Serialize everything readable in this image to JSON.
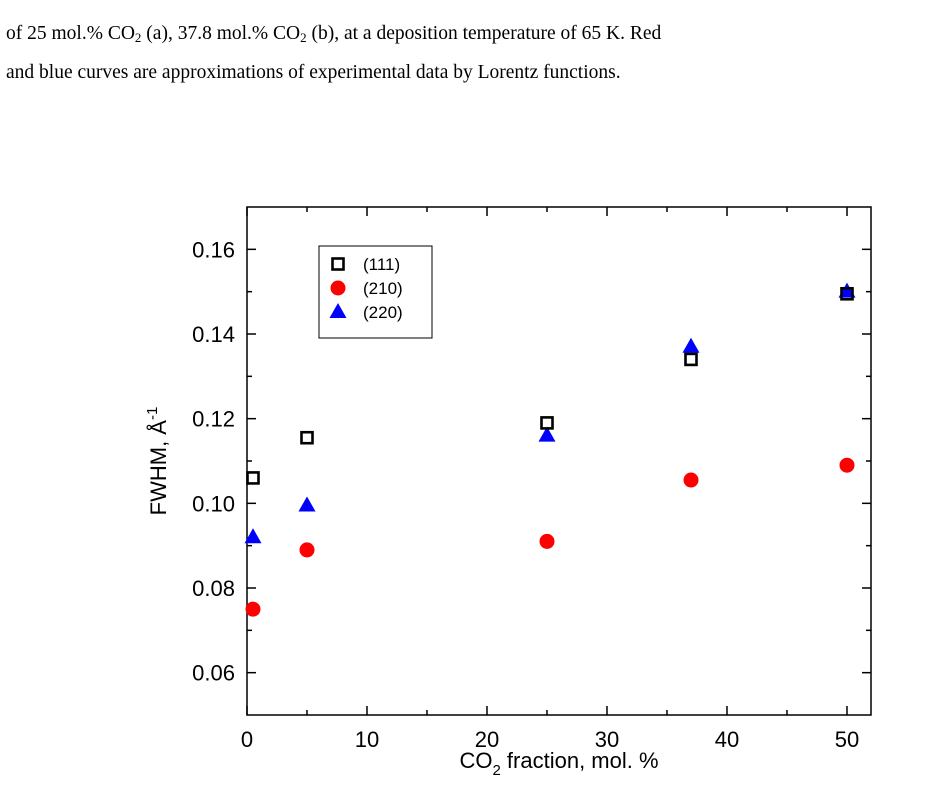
{
  "caption": {
    "line1_prefix": "of 25 mol.% CO",
    "line1_mid": " (a), 37.8 mol.% CO",
    "line1_suffix": " (b), at a deposition temperature of 65 K. Red",
    "sub": "2",
    "line2": "and blue curves are approximations of experimental data by Lorentz functions."
  },
  "chart_data": {
    "type": "scatter",
    "xlabel_main": "CO",
    "xlabel_sub": "2",
    "xlabel_rest": " fraction, mol. %",
    "ylabel_main": "FWHM, Å",
    "ylabel_sup": "-1",
    "xlim": [
      0,
      52
    ],
    "ylim": [
      0.05,
      0.17
    ],
    "xticks": [
      0,
      10,
      20,
      30,
      40,
      50
    ],
    "xtick_labels": [
      "0",
      "10",
      "20",
      "30",
      "40",
      "50"
    ],
    "yticks": [
      0.06,
      0.08,
      0.1,
      0.12,
      0.14,
      0.16
    ],
    "ytick_labels": [
      "0.06",
      "0.08",
      "0.10",
      "0.12",
      "0.14",
      "0.16"
    ],
    "legend_position": "top-left",
    "grid": false,
    "series": [
      {
        "name": "(111)",
        "marker": "open-square",
        "color": "#000000",
        "x": [
          0.5,
          5,
          25,
          37,
          50
        ],
        "y": [
          0.106,
          0.1155,
          0.119,
          0.134,
          0.1495
        ]
      },
      {
        "name": "(210)",
        "marker": "filled-circle",
        "color": "#ff0000",
        "x": [
          0.5,
          5,
          25,
          37,
          50
        ],
        "y": [
          0.075,
          0.089,
          0.091,
          0.1055,
          0.109
        ]
      },
      {
        "name": "(220)",
        "marker": "filled-triangle",
        "color": "#0000ff",
        "x": [
          0.5,
          5,
          25,
          37,
          50
        ],
        "y": [
          0.092,
          0.0995,
          0.116,
          0.137,
          0.15
        ]
      }
    ]
  }
}
